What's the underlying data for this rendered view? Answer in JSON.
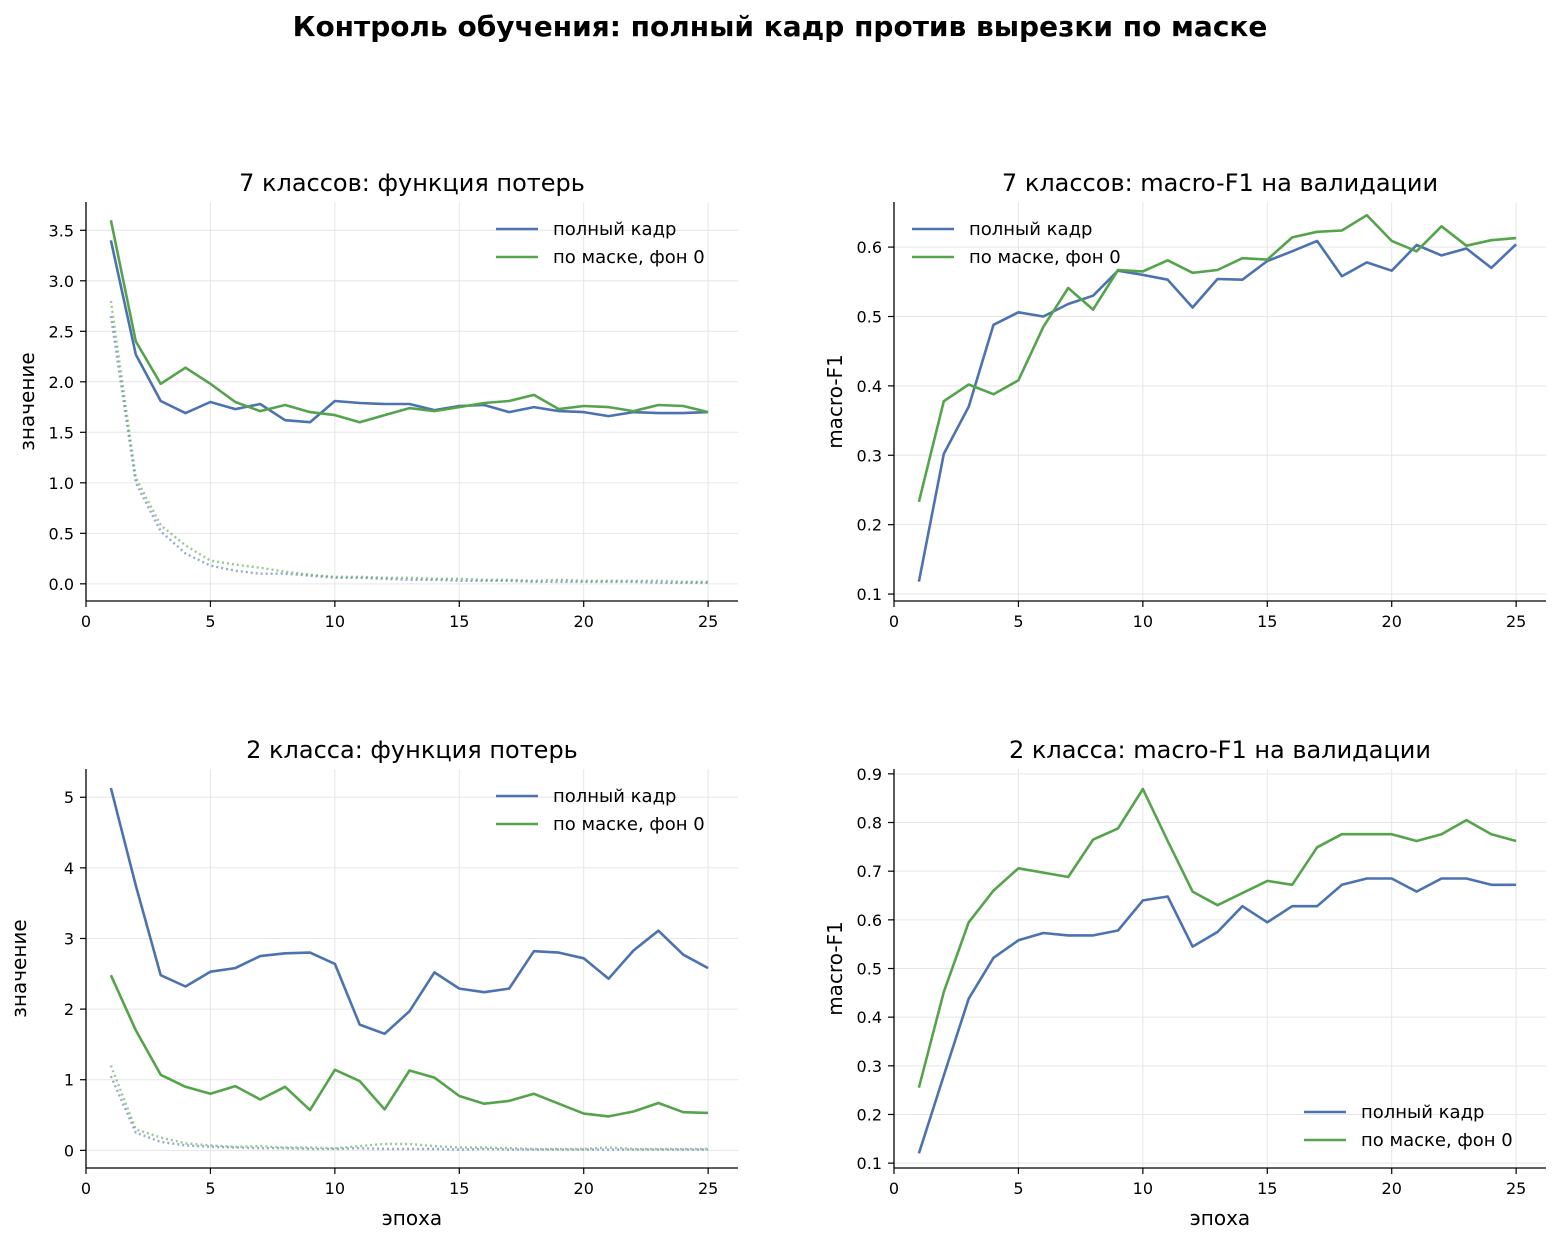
{
  "suptitle": "Контроль обучения: полный кадр против вырезки по маске",
  "colors": {
    "full": "#4c72b0",
    "mask": "#55a34b"
  },
  "chart_data": [
    {
      "id": "p7loss",
      "type": "line",
      "title": "7 классов: функция потерь",
      "xlabel": "",
      "ylabel": "значение",
      "xlim": [
        0,
        26.2
      ],
      "ylim": [
        -0.17,
        3.78
      ],
      "xticks": [
        0,
        5,
        10,
        15,
        20,
        25
      ],
      "yticks": [
        0.0,
        0.5,
        1.0,
        1.5,
        2.0,
        2.5,
        3.0,
        3.5
      ],
      "ytick_labels": [
        "0.0",
        "0.5",
        "1.0",
        "1.5",
        "2.0",
        "2.5",
        "3.0",
        "3.5"
      ],
      "grid": true,
      "legend": "top-right",
      "series": [
        {
          "name": "полный кадр",
          "color": "#4c72b0",
          "style": "solid",
          "x": [
            1,
            2,
            3,
            4,
            5,
            6,
            7,
            8,
            9,
            10,
            11,
            12,
            13,
            14,
            15,
            16,
            17,
            18,
            19,
            20,
            21,
            22,
            23,
            24,
            25
          ],
          "y": [
            3.4,
            2.27,
            1.81,
            1.69,
            1.8,
            1.73,
            1.78,
            1.62,
            1.6,
            1.81,
            1.79,
            1.78,
            1.78,
            1.72,
            1.76,
            1.77,
            1.7,
            1.75,
            1.71,
            1.7,
            1.66,
            1.7,
            1.69,
            1.69,
            1.7
          ]
        },
        {
          "name": "по маске, фон 0",
          "color": "#55a34b",
          "style": "solid",
          "x": [
            1,
            2,
            3,
            4,
            5,
            6,
            7,
            8,
            9,
            10,
            11,
            12,
            13,
            14,
            15,
            16,
            17,
            18,
            19,
            20,
            21,
            22,
            23,
            24,
            25
          ],
          "y": [
            3.6,
            2.4,
            1.98,
            2.14,
            1.98,
            1.8,
            1.71,
            1.77,
            1.7,
            1.67,
            1.6,
            1.67,
            1.74,
            1.71,
            1.75,
            1.79,
            1.81,
            1.87,
            1.73,
            1.76,
            1.75,
            1.71,
            1.77,
            1.76,
            1.7
          ]
        },
        {
          "name": "",
          "color": "#4c72b0",
          "style": "dotted",
          "x": [
            1,
            2,
            3,
            4,
            5,
            6,
            7,
            8,
            9,
            10,
            11,
            12,
            13,
            14,
            15,
            16,
            17,
            18,
            19,
            20,
            21,
            22,
            23,
            24,
            25
          ],
          "y": [
            2.65,
            1.0,
            0.52,
            0.3,
            0.18,
            0.13,
            0.1,
            0.1,
            0.08,
            0.06,
            0.06,
            0.05,
            0.04,
            0.04,
            0.03,
            0.03,
            0.03,
            0.02,
            0.02,
            0.02,
            0.02,
            0.02,
            0.01,
            0.01,
            0.01
          ]
        },
        {
          "name": "",
          "color": "#55a34b",
          "style": "dotted",
          "x": [
            1,
            2,
            3,
            4,
            5,
            6,
            7,
            8,
            9,
            10,
            11,
            12,
            13,
            14,
            15,
            16,
            17,
            18,
            19,
            20,
            21,
            22,
            23,
            24,
            25
          ],
          "y": [
            2.8,
            1.05,
            0.58,
            0.38,
            0.23,
            0.19,
            0.16,
            0.12,
            0.09,
            0.07,
            0.07,
            0.06,
            0.06,
            0.05,
            0.05,
            0.04,
            0.04,
            0.03,
            0.04,
            0.03,
            0.03,
            0.03,
            0.03,
            0.02,
            0.02
          ]
        }
      ]
    },
    {
      "id": "p7f1",
      "type": "line",
      "title": "7 классов: macro-F1 на валидации",
      "xlabel": "",
      "ylabel": "macro-F1",
      "xlim": [
        0,
        26.2
      ],
      "ylim": [
        0.09,
        0.665
      ],
      "xticks": [
        0,
        5,
        10,
        15,
        20,
        25
      ],
      "yticks": [
        0.1,
        0.2,
        0.3,
        0.4,
        0.5,
        0.6
      ],
      "ytick_labels": [
        "0.1",
        "0.2",
        "0.3",
        "0.4",
        "0.5",
        "0.6"
      ],
      "grid": true,
      "legend": "top-left",
      "series": [
        {
          "name": "полный кадр",
          "color": "#4c72b0",
          "style": "solid",
          "x": [
            1,
            2,
            3,
            4,
            5,
            6,
            7,
            8,
            9,
            10,
            11,
            12,
            13,
            14,
            15,
            16,
            17,
            18,
            19,
            20,
            21,
            22,
            23,
            24,
            25
          ],
          "y": [
            0.118,
            0.302,
            0.37,
            0.488,
            0.506,
            0.5,
            0.518,
            0.53,
            0.566,
            0.56,
            0.553,
            0.513,
            0.554,
            0.553,
            0.58,
            0.594,
            0.609,
            0.558,
            0.578,
            0.566,
            0.603,
            0.588,
            0.598,
            0.57,
            0.604
          ]
        },
        {
          "name": "по маске, фон 0",
          "color": "#55a34b",
          "style": "solid",
          "x": [
            1,
            2,
            3,
            4,
            5,
            6,
            7,
            8,
            9,
            10,
            11,
            12,
            13,
            14,
            15,
            16,
            17,
            18,
            19,
            20,
            21,
            22,
            23,
            24,
            25
          ],
          "y": [
            0.233,
            0.378,
            0.402,
            0.388,
            0.408,
            0.485,
            0.541,
            0.51,
            0.567,
            0.565,
            0.581,
            0.563,
            0.567,
            0.584,
            0.582,
            0.614,
            0.622,
            0.624,
            0.646,
            0.609,
            0.594,
            0.63,
            0.602,
            0.61,
            0.613
          ]
        }
      ]
    },
    {
      "id": "p2loss",
      "type": "line",
      "title": "2 класса: функция потерь",
      "xlabel": "эпоха",
      "ylabel": "значение",
      "xlim": [
        0,
        26.2
      ],
      "ylim": [
        -0.25,
        5.4
      ],
      "xticks": [
        0,
        5,
        10,
        15,
        20,
        25
      ],
      "yticks": [
        0,
        1,
        2,
        3,
        4,
        5
      ],
      "ytick_labels": [
        "0",
        "1",
        "2",
        "3",
        "4",
        "5"
      ],
      "grid": true,
      "legend": "top-right",
      "series": [
        {
          "name": "полный кадр",
          "color": "#4c72b0",
          "style": "solid",
          "x": [
            1,
            2,
            3,
            4,
            5,
            6,
            7,
            8,
            9,
            10,
            11,
            12,
            13,
            14,
            15,
            16,
            17,
            18,
            19,
            20,
            21,
            22,
            23,
            24,
            25
          ],
          "y": [
            5.13,
            3.75,
            2.48,
            2.32,
            2.53,
            2.58,
            2.75,
            2.79,
            2.8,
            2.64,
            1.78,
            1.65,
            1.97,
            2.52,
            2.29,
            2.24,
            2.29,
            2.82,
            2.8,
            2.72,
            2.43,
            2.83,
            3.11,
            2.77,
            2.58
          ]
        },
        {
          "name": "по маске, фон 0",
          "color": "#55a34b",
          "style": "solid",
          "x": [
            1,
            2,
            3,
            4,
            5,
            6,
            7,
            8,
            9,
            10,
            11,
            12,
            13,
            14,
            15,
            16,
            17,
            18,
            19,
            20,
            21,
            22,
            23,
            24,
            25
          ],
          "y": [
            2.48,
            1.7,
            1.07,
            0.9,
            0.8,
            0.91,
            0.72,
            0.9,
            0.57,
            1.14,
            0.98,
            0.58,
            1.13,
            1.03,
            0.77,
            0.66,
            0.7,
            0.8,
            0.66,
            0.52,
            0.48,
            0.55,
            0.67,
            0.54,
            0.53
          ]
        },
        {
          "name": "",
          "color": "#4c72b0",
          "style": "dotted",
          "x": [
            1,
            2,
            3,
            4,
            5,
            6,
            7,
            8,
            9,
            10,
            11,
            12,
            13,
            14,
            15,
            16,
            17,
            18,
            19,
            20,
            21,
            22,
            23,
            24,
            25
          ],
          "y": [
            1.05,
            0.25,
            0.12,
            0.07,
            0.05,
            0.04,
            0.03,
            0.03,
            0.02,
            0.02,
            0.03,
            0.02,
            0.02,
            0.02,
            0.01,
            0.02,
            0.01,
            0.01,
            0.01,
            0.01,
            0.01,
            0.01,
            0.01,
            0.01,
            0.01
          ]
        },
        {
          "name": "",
          "color": "#55a34b",
          "style": "dotted",
          "x": [
            1,
            2,
            3,
            4,
            5,
            6,
            7,
            8,
            9,
            10,
            11,
            12,
            13,
            14,
            15,
            16,
            17,
            18,
            19,
            20,
            21,
            22,
            23,
            24,
            25
          ],
          "y": [
            1.2,
            0.3,
            0.18,
            0.1,
            0.07,
            0.05,
            0.06,
            0.04,
            0.04,
            0.03,
            0.06,
            0.09,
            0.09,
            0.06,
            0.04,
            0.04,
            0.03,
            0.02,
            0.02,
            0.02,
            0.04,
            0.02,
            0.02,
            0.02,
            0.02
          ]
        }
      ]
    },
    {
      "id": "p2f1",
      "type": "line",
      "title": "2 класса: macro-F1 на валидации",
      "xlabel": "эпоха",
      "ylabel": "macro-F1",
      "xlim": [
        0,
        26.2
      ],
      "ylim": [
        0.09,
        0.91
      ],
      "xticks": [
        0,
        5,
        10,
        15,
        20,
        25
      ],
      "yticks": [
        0.1,
        0.2,
        0.3,
        0.4,
        0.5,
        0.6,
        0.7,
        0.8,
        0.9
      ],
      "ytick_labels": [
        "0.1",
        "0.2",
        "0.3",
        "0.4",
        "0.5",
        "0.6",
        "0.7",
        "0.8",
        "0.9"
      ],
      "grid": true,
      "legend": "bottom-right",
      "series": [
        {
          "name": "полный кадр",
          "color": "#4c72b0",
          "style": "solid",
          "x": [
            1,
            2,
            3,
            4,
            5,
            6,
            7,
            8,
            9,
            10,
            11,
            12,
            13,
            14,
            15,
            16,
            17,
            18,
            19,
            20,
            21,
            22,
            23,
            24,
            25
          ],
          "y": [
            0.12,
            0.28,
            0.438,
            0.522,
            0.558,
            0.573,
            0.568,
            0.568,
            0.578,
            0.64,
            0.648,
            0.545,
            0.575,
            0.628,
            0.595,
            0.628,
            0.628,
            0.672,
            0.685,
            0.685,
            0.658,
            0.685,
            0.685,
            0.672,
            0.672
          ]
        },
        {
          "name": "по маске, фон 0",
          "color": "#55a34b",
          "style": "solid",
          "x": [
            1,
            2,
            3,
            4,
            5,
            6,
            7,
            8,
            9,
            10,
            11,
            12,
            13,
            14,
            15,
            16,
            17,
            18,
            19,
            20,
            21,
            22,
            23,
            24,
            25
          ],
          "y": [
            0.255,
            0.452,
            0.595,
            0.66,
            0.706,
            0.697,
            0.688,
            0.765,
            0.788,
            0.869,
            0.762,
            0.658,
            0.63,
            0.655,
            0.68,
            0.672,
            0.749,
            0.776,
            0.776,
            0.776,
            0.762,
            0.776,
            0.805,
            0.776,
            0.762
          ]
        }
      ]
    }
  ]
}
